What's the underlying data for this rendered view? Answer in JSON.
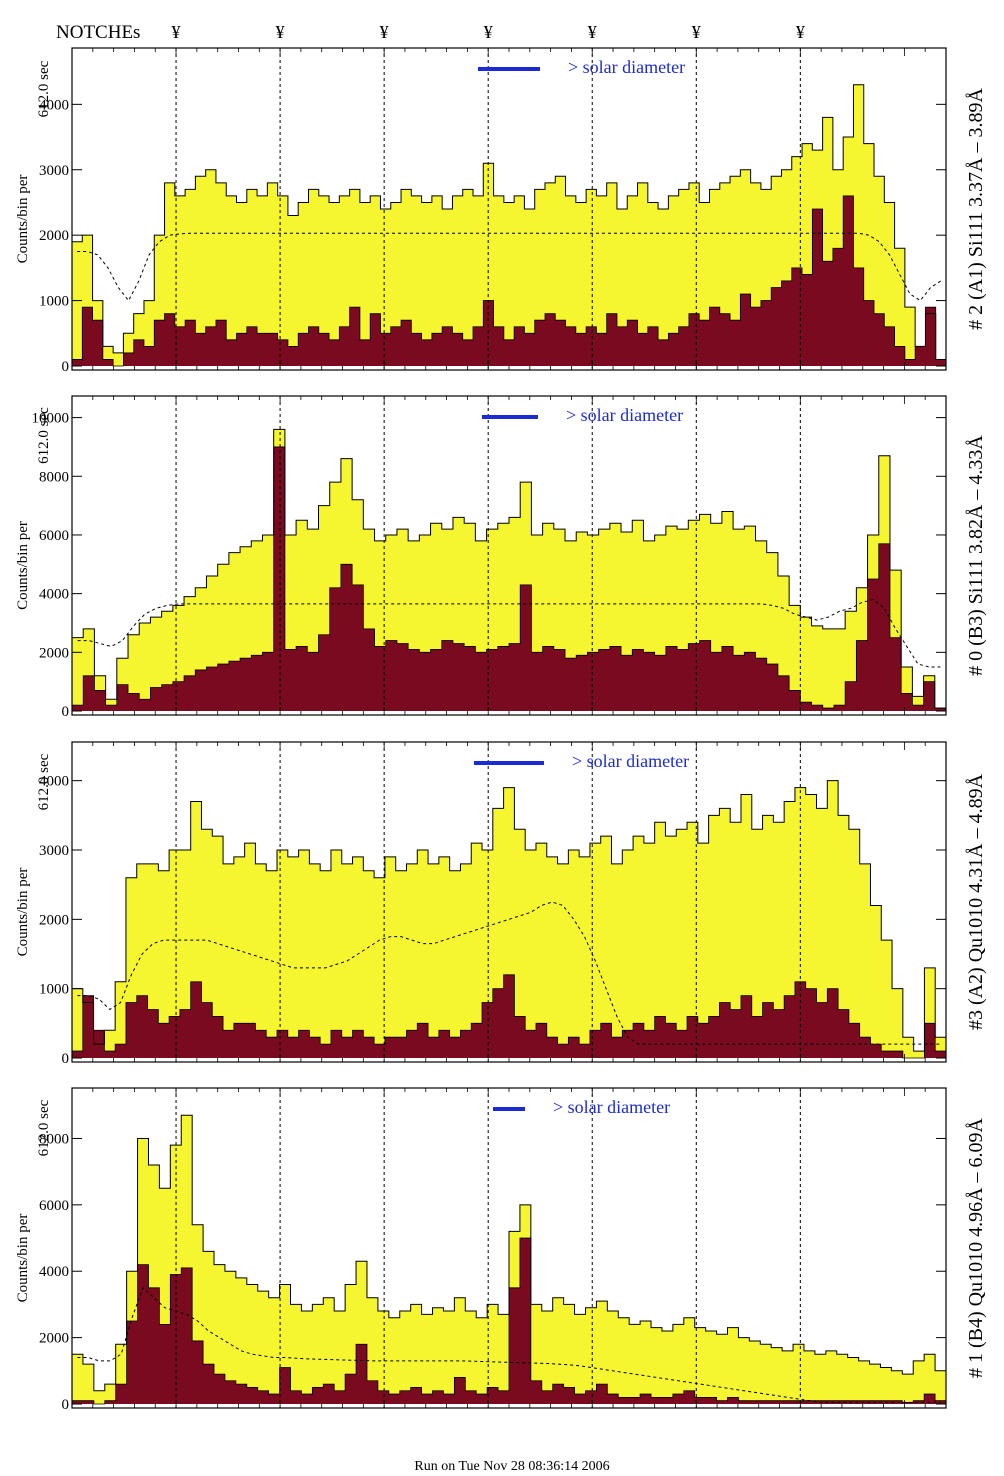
{
  "header": {
    "notches_label": "NOTCHEs",
    "notch_symbol": "¥",
    "footer": "Run on Tue Nov 28 08:36:14 2006"
  },
  "colors": {
    "yellow_fill": "#f5f530",
    "maroon_fill": "#7a0a20",
    "legend_blue": "#1a2bd6",
    "frame": "#000000"
  },
  "chart_data": {
    "type": "area",
    "notch_positions": [
      10,
      20,
      30,
      40,
      50,
      60,
      70
    ],
    "x_range": [
      0,
      84
    ],
    "panels": [
      {
        "right_label": "# 2 (A1) Si111  3.37Å – 3.89Å",
        "ylabel_left": "Counts/bin per",
        "ylabel_right": "612.0 sec",
        "legend": "> solar diameter",
        "ylim": [
          0,
          4800
        ],
        "yticks": [
          0,
          1000,
          2000,
          3000,
          4000
        ],
        "total": [
          1900,
          2000,
          1000,
          300,
          200,
          500,
          800,
          1000,
          2000,
          2800,
          2600,
          2700,
          2900,
          3000,
          2800,
          2600,
          2500,
          2700,
          2600,
          2800,
          2600,
          2300,
          2500,
          2700,
          2600,
          2500,
          2600,
          2700,
          2500,
          2600,
          2400,
          2500,
          2700,
          2600,
          2500,
          2600,
          2400,
          2600,
          2700,
          2600,
          3100,
          2600,
          2500,
          2600,
          2400,
          2700,
          2800,
          2900,
          2600,
          2500,
          2700,
          2600,
          2800,
          2400,
          2600,
          2800,
          2500,
          2400,
          2600,
          2700,
          2800,
          2500,
          2700,
          2800,
          2900,
          3000,
          2800,
          2700,
          2900,
          3000,
          3200,
          3400,
          3300,
          3800,
          3000,
          3500,
          4300,
          3400,
          2900,
          2500,
          1800,
          900,
          300,
          800,
          100
        ],
        "excess": [
          100,
          900,
          700,
          100,
          0,
          200,
          400,
          300,
          700,
          800,
          600,
          700,
          500,
          600,
          700,
          400,
          500,
          600,
          500,
          500,
          400,
          300,
          500,
          600,
          500,
          400,
          600,
          900,
          400,
          800,
          500,
          600,
          700,
          500,
          400,
          500,
          600,
          500,
          400,
          600,
          1000,
          600,
          400,
          600,
          500,
          700,
          800,
          700,
          600,
          500,
          600,
          500,
          800,
          600,
          700,
          500,
          600,
          400,
          500,
          600,
          800,
          700,
          900,
          800,
          700,
          1100,
          900,
          1000,
          1200,
          1300,
          1500,
          1400,
          2400,
          1600,
          1800,
          2600,
          1500,
          1000,
          800,
          600,
          300,
          100,
          300,
          900,
          100
        ],
        "model": [
          1750,
          1750,
          1700,
          1500,
          1200,
          1000,
          1300,
          1700,
          1900,
          2000,
          2020,
          2030,
          2030,
          2030,
          2030,
          2030,
          2030,
          2030,
          2030,
          2030,
          2030,
          2030,
          2030,
          2030,
          2030,
          2030,
          2030,
          2030,
          2030,
          2030,
          2030,
          2030,
          2030,
          2030,
          2030,
          2030,
          2030,
          2030,
          2030,
          2030,
          2030,
          2030,
          2030,
          2030,
          2030,
          2030,
          2030,
          2030,
          2030,
          2030,
          2030,
          2030,
          2030,
          2030,
          2030,
          2030,
          2030,
          2030,
          2030,
          2030,
          2030,
          2030,
          2030,
          2030,
          2030,
          2030,
          2030,
          2030,
          2030,
          2030,
          2030,
          2030,
          2030,
          2030,
          2030,
          2030,
          2030,
          2000,
          1900,
          1700,
          1400,
          1100,
          1000,
          1200,
          1300
        ]
      },
      {
        "right_label": "# 0 (B3) Si111  3.82Å – 4.33Å",
        "ylabel_left": "Counts/bin per",
        "ylabel_right": "612.0 sec",
        "legend": "> solar diameter",
        "ylim": [
          0,
          10600
        ],
        "yticks": [
          0,
          2000,
          4000,
          6000,
          8000,
          10000
        ],
        "total": [
          2500,
          2800,
          1200,
          400,
          1800,
          2600,
          3000,
          3200,
          3400,
          3600,
          3900,
          4200,
          4600,
          5000,
          5400,
          5600,
          5800,
          6000,
          9600,
          6000,
          6500,
          6200,
          7000,
          7800,
          8600,
          7200,
          6200,
          5800,
          6000,
          6200,
          5800,
          6000,
          6400,
          6200,
          6600,
          6400,
          5800,
          6200,
          6400,
          6600,
          7800,
          6000,
          6400,
          6200,
          5800,
          6100,
          6000,
          6200,
          6400,
          6100,
          6500,
          5800,
          6000,
          6300,
          6200,
          6500,
          6700,
          6400,
          6800,
          6200,
          6300,
          5800,
          5400,
          4600,
          3600,
          3200,
          2900,
          2800,
          2800,
          3400,
          4200,
          6000,
          8700,
          4800,
          1500,
          500,
          1200,
          100
        ],
        "excess": [
          200,
          1200,
          700,
          200,
          900,
          600,
          400,
          800,
          900,
          1000,
          1200,
          1400,
          1500,
          1600,
          1700,
          1800,
          1900,
          2000,
          9000,
          2100,
          2200,
          2000,
          2600,
          4200,
          5000,
          4300,
          2800,
          2200,
          2400,
          2300,
          2100,
          2000,
          2100,
          2400,
          2300,
          2200,
          2000,
          2100,
          2200,
          2300,
          4300,
          2000,
          2200,
          2100,
          1800,
          1900,
          2000,
          2100,
          2200,
          1900,
          2100,
          2000,
          1900,
          2200,
          2100,
          2300,
          2400,
          2000,
          2200,
          1900,
          2000,
          1800,
          1600,
          1200,
          700,
          300,
          200,
          100,
          200,
          1000,
          2400,
          4500,
          5700,
          2500,
          600,
          200,
          1000,
          100
        ],
        "model": [
          2400,
          2400,
          2300,
          2200,
          2400,
          2900,
          3300,
          3500,
          3600,
          3650,
          3650,
          3650,
          3650,
          3650,
          3650,
          3650,
          3650,
          3650,
          3650,
          3650,
          3650,
          3650,
          3650,
          3650,
          3650,
          3650,
          3650,
          3650,
          3650,
          3650,
          3650,
          3650,
          3650,
          3650,
          3650,
          3650,
          3650,
          3650,
          3650,
          3650,
          3650,
          3650,
          3650,
          3650,
          3650,
          3650,
          3650,
          3650,
          3650,
          3650,
          3650,
          3650,
          3650,
          3650,
          3650,
          3650,
          3650,
          3650,
          3650,
          3650,
          3650,
          3650,
          3600,
          3500,
          3300,
          3200,
          3100,
          3200,
          3400,
          3500,
          3700,
          3800,
          3500,
          2800,
          2200,
          1600,
          1500,
          1500
        ]
      },
      {
        "right_label": "#3 (A2) Qu1010  4.31Å – 4.89Å",
        "ylabel_left": "Counts/bin per",
        "ylabel_right": "612.0 sec",
        "legend": "> solar diameter",
        "ylim": [
          0,
          4500
        ],
        "yticks": [
          0,
          1000,
          2000,
          3000,
          4000
        ],
        "total": [
          1000,
          800,
          200,
          400,
          1100,
          2600,
          2800,
          2800,
          2700,
          3000,
          3000,
          3700,
          3300,
          3200,
          2800,
          2900,
          3100,
          2800,
          2700,
          3000,
          2900,
          3000,
          2800,
          2700,
          3000,
          2800,
          2900,
          2700,
          2600,
          2900,
          2700,
          2800,
          3000,
          2800,
          2900,
          2700,
          2800,
          3100,
          3000,
          3600,
          3900,
          3300,
          3000,
          3100,
          2900,
          2800,
          3000,
          2900,
          3100,
          3200,
          2800,
          3000,
          3200,
          3100,
          3400,
          3200,
          3300,
          3400,
          3100,
          3500,
          3600,
          3400,
          3800,
          3300,
          3500,
          3400,
          3700,
          3900,
          3800,
          3600,
          4000,
          3500,
          3300,
          2800,
          2200,
          1700,
          1000,
          300,
          100,
          1300,
          300
        ],
        "excess": [
          100,
          900,
          400,
          100,
          200,
          800,
          900,
          700,
          500,
          600,
          700,
          1100,
          800,
          600,
          400,
          500,
          500,
          400,
          300,
          400,
          300,
          400,
          300,
          200,
          400,
          300,
          400,
          300,
          200,
          300,
          300,
          400,
          500,
          300,
          400,
          300,
          400,
          500,
          800,
          1000,
          1200,
          600,
          400,
          500,
          300,
          200,
          300,
          200,
          400,
          500,
          300,
          400,
          500,
          400,
          600,
          500,
          400,
          600,
          500,
          600,
          800,
          700,
          900,
          600,
          800,
          700,
          900,
          1100,
          1000,
          800,
          1000,
          700,
          500,
          300,
          200,
          100,
          100,
          0,
          0,
          500,
          100
        ],
        "model": [
          900,
          900,
          850,
          700,
          800,
          1200,
          1500,
          1650,
          1700,
          1700,
          1700,
          1700,
          1700,
          1650,
          1600,
          1550,
          1500,
          1450,
          1400,
          1350,
          1300,
          1300,
          1300,
          1300,
          1350,
          1400,
          1500,
          1600,
          1700,
          1750,
          1750,
          1700,
          1650,
          1650,
          1700,
          1750,
          1800,
          1850,
          1900,
          1950,
          2000,
          2050,
          2100,
          2200,
          2250,
          2200,
          2000,
          1750,
          1400,
          1000,
          600,
          300,
          200,
          200,
          200,
          200,
          200,
          200,
          200,
          200,
          200,
          200,
          200,
          200,
          200,
          200,
          200,
          200,
          200,
          200,
          200,
          200,
          200,
          200,
          200,
          200,
          200,
          200,
          200,
          200,
          200
        ]
      },
      {
        "right_label": "# 1 (B4) Qu1010  4.96Å – 6.09Å",
        "ylabel_left": "Counts/bin per",
        "ylabel_right": "612.0 sec",
        "legend": "> solar diameter",
        "ylim": [
          0,
          9400
        ],
        "yticks": [
          0,
          2000,
          4000,
          6000,
          8000
        ],
        "total": [
          1500,
          1200,
          400,
          600,
          1800,
          4000,
          8000,
          7200,
          6500,
          7800,
          8700,
          5400,
          4600,
          4200,
          4000,
          3800,
          3600,
          3400,
          3200,
          3600,
          3000,
          2800,
          3000,
          3200,
          2800,
          3600,
          4300,
          3200,
          2800,
          2600,
          2800,
          3000,
          2700,
          2900,
          2800,
          3200,
          2800,
          2600,
          3000,
          2700,
          5200,
          6000,
          3000,
          2800,
          3200,
          3000,
          2700,
          2900,
          3100,
          2800,
          2600,
          2400,
          2500,
          2300,
          2200,
          2400,
          2600,
          2300,
          2200,
          2100,
          2300,
          2000,
          1900,
          1800,
          1700,
          1600,
          1800,
          1600,
          1500,
          1600,
          1500,
          1400,
          1300,
          1200,
          1100,
          1000,
          900,
          1300,
          1500,
          1000
        ],
        "excess": [
          100,
          100,
          0,
          100,
          600,
          2500,
          4200,
          3500,
          2400,
          3900,
          4100,
          1900,
          1200,
          900,
          700,
          600,
          500,
          400,
          300,
          1100,
          400,
          300,
          500,
          600,
          400,
          900,
          1800,
          700,
          400,
          300,
          400,
          500,
          300,
          400,
          300,
          800,
          400,
          300,
          500,
          400,
          3500,
          5000,
          700,
          400,
          600,
          500,
          300,
          400,
          600,
          300,
          200,
          200,
          300,
          200,
          200,
          300,
          400,
          200,
          200,
          100,
          200,
          100,
          100,
          100,
          100,
          100,
          100,
          100,
          100,
          100,
          100,
          100,
          100,
          100,
          100,
          100,
          50,
          100,
          300,
          100
        ],
        "model": [
          1400,
          1400,
          1300,
          1300,
          1500,
          2600,
          3500,
          3200,
          2900,
          2800,
          2700,
          2500,
          2200,
          2000,
          1800,
          1600,
          1500,
          1450,
          1400,
          1400,
          1380,
          1360,
          1350,
          1340,
          1330,
          1320,
          1310,
          1300,
          1300,
          1300,
          1300,
          1300,
          1300,
          1300,
          1300,
          1300,
          1290,
          1280,
          1270,
          1260,
          1250,
          1240,
          1230,
          1220,
          1200,
          1180,
          1150,
          1100,
          1050,
          1000,
          950,
          900,
          850,
          800,
          750,
          700,
          650,
          600,
          550,
          500,
          450,
          400,
          350,
          300,
          250,
          200,
          150,
          100,
          50,
          50,
          50,
          50,
          50,
          50,
          50,
          50,
          50,
          50,
          50,
          50
        ]
      }
    ]
  }
}
